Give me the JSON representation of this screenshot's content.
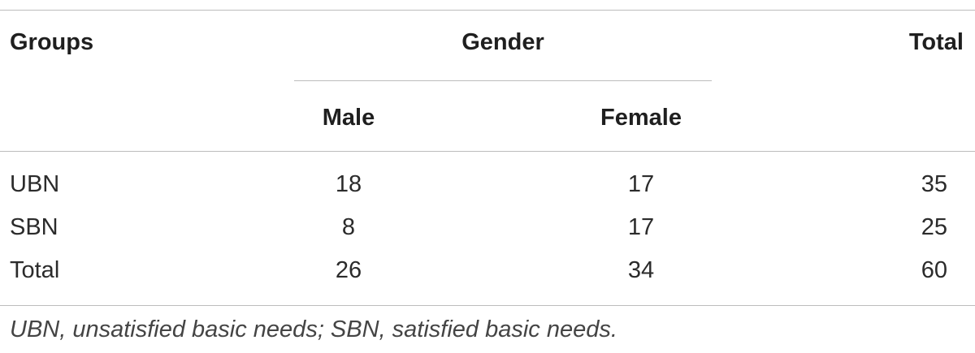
{
  "table": {
    "headers": {
      "groups": "Groups",
      "gender": "Gender",
      "total": "Total",
      "male": "Male",
      "female": "Female"
    },
    "rows": [
      {
        "group": "UBN",
        "male": "18",
        "female": "17",
        "total": "35"
      },
      {
        "group": "SBN",
        "male": "8",
        "female": "17",
        "total": "25"
      },
      {
        "group": "Total",
        "male": "26",
        "female": "34",
        "total": "60"
      }
    ],
    "footnote": "UBN, unsatisfied basic needs; SBN, satisfied basic needs."
  }
}
